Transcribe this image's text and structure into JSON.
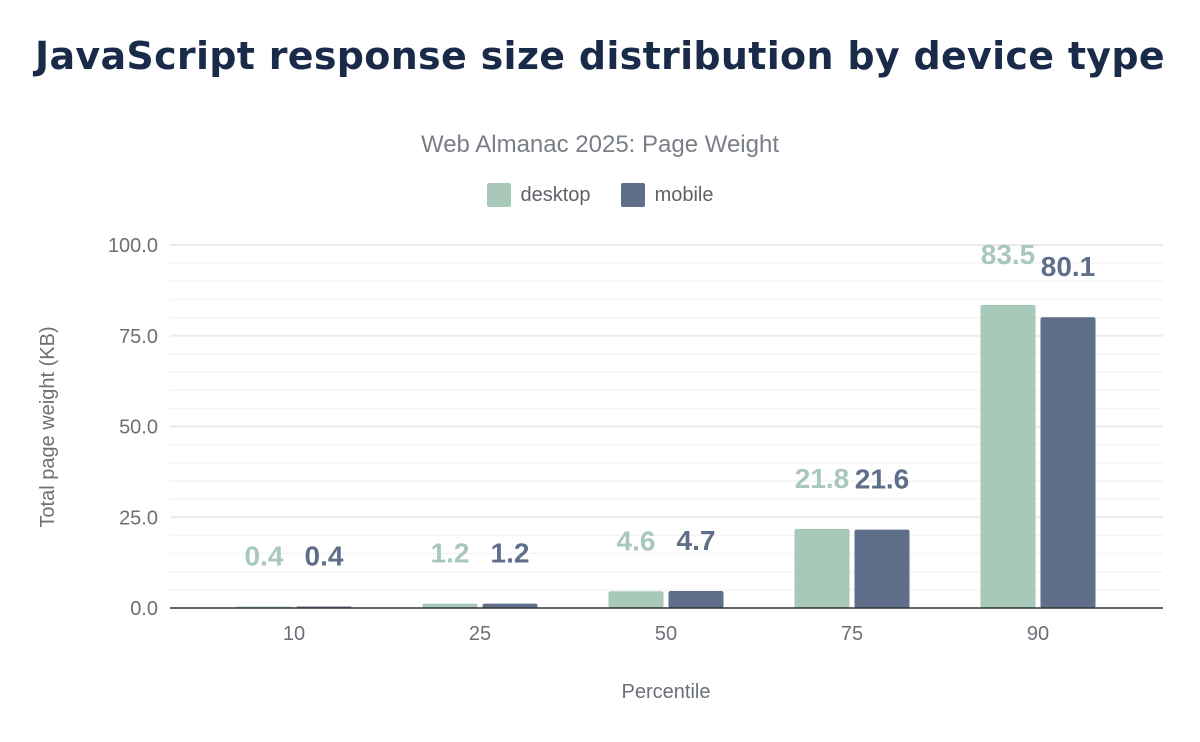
{
  "chart_data": {
    "type": "bar",
    "title": "JavaScript response size distribution by device type",
    "subtitle": "Web Almanac 2025: Page Weight",
    "xlabel": "Percentile",
    "ylabel": "Total page weight (KB)",
    "categories": [
      "10",
      "25",
      "50",
      "75",
      "90"
    ],
    "ylim": [
      0,
      100
    ],
    "yticks": [
      "0.0",
      "25.0",
      "50.0",
      "75.0",
      "100.0"
    ],
    "grid": true,
    "legend_placement": "top",
    "series": [
      {
        "name": "desktop",
        "color": "#a8c9b9",
        "values": [
          0.4,
          1.2,
          4.6,
          21.8,
          83.5
        ]
      },
      {
        "name": "mobile",
        "color": "#5f6f89",
        "values": [
          0.4,
          1.2,
          4.7,
          21.6,
          80.1
        ]
      }
    ]
  }
}
